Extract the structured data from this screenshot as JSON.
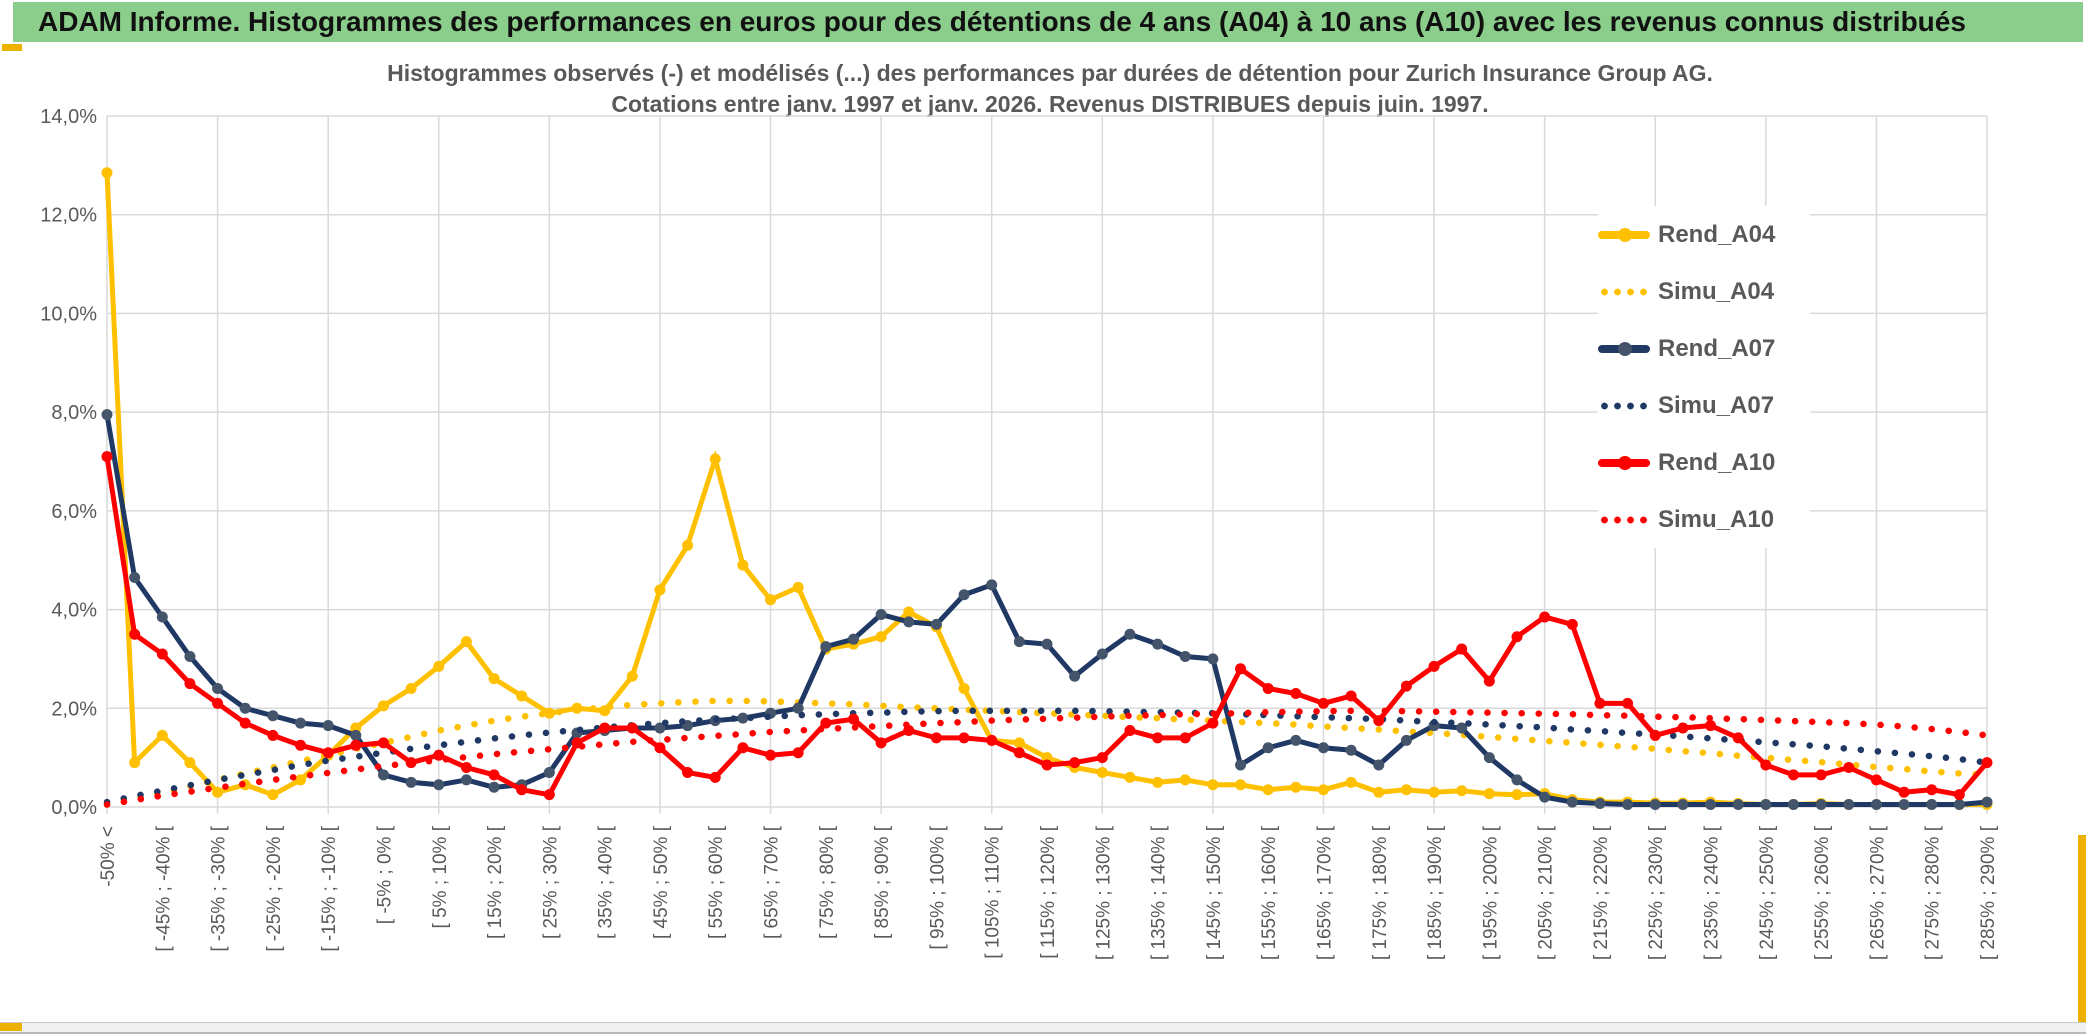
{
  "header": {
    "title": "ADAM Informe. Histogrammes des performances en euros pour des détentions de 4 ans (A04) à 10 ans (A10) avec les revenus connus distribués"
  },
  "chart_data": {
    "type": "line",
    "title_line1": "Histogrammes observés (-) et modélisés (...) des performances par durées de détention pour Zurich Insurance Group AG.",
    "title_line2": "Cotations entre janv. 1997 et janv. 2026. Revenus DISTRIBUES depuis juin. 1997.",
    "ylabel": "",
    "xlabel": "",
    "ylim": [
      0,
      14
    ],
    "grid": true,
    "legend_position": "right",
    "y_tick_labels": [
      "0,0%",
      "2,0%",
      "4,0%",
      "6,0%",
      "8,0%",
      "10,0%",
      "12,0%",
      "14,0%"
    ],
    "x_labels_every_other_point": true,
    "categories": [
      "-50% <",
      "[ -45% ; -40% [",
      "[ -35% ; -30% [",
      "[ -25% ; -20% [",
      "[ -15% ; -10% [",
      "[ -5% ; 0% [",
      "[ 5% ; 10% [",
      "[ 15% ; 20% [",
      "[ 25% ; 30% [",
      "[ 35% ; 40% [",
      "[ 45% ; 50% [",
      "[ 55% ; 60% [",
      "[ 65% ; 70% [",
      "[ 75% ; 80% [",
      "[ 85% ; 90% [",
      "[ 95% ; 100% [",
      "[ 105% ; 110% [",
      "[ 115% ; 120% [",
      "[ 125% ; 130% [",
      "[ 135% ; 140% [",
      "[ 145% ; 150% [",
      "[ 155% ; 160% [",
      "[ 165% ; 170% [",
      "[ 175% ; 180% [",
      "[ 185% ; 190% [",
      "[ 195% ; 200% [",
      "[ 205% ; 210% [",
      "[ 215% ; 220% [",
      "[ 225% ; 230% [",
      "[ 235% ; 240% [",
      "[ 245% ; 250% [",
      "[ 255% ; 260% [",
      "[ 265% ; 270% [",
      "[ 275% ; 280% [",
      "[ 285% ; 290% ["
    ],
    "series": [
      {
        "name": "Rend_A04",
        "style": "solid",
        "color": "#FFC000",
        "marker_color": "#FFC000",
        "values": [
          12.85,
          0.9,
          1.45,
          0.9,
          0.3,
          0.45,
          0.25,
          0.55,
          1.05,
          1.6,
          2.05,
          2.4,
          2.85,
          3.35,
          2.6,
          2.25,
          1.9,
          2.0,
          1.95,
          2.65,
          4.4,
          5.3,
          7.05,
          4.9,
          4.2,
          4.45,
          3.2,
          3.3,
          3.45,
          3.95,
          3.65,
          2.4,
          1.35,
          1.3,
          1.0,
          0.8,
          0.7,
          0.6,
          0.5,
          0.55,
          0.45,
          0.45,
          0.35,
          0.4,
          0.35,
          0.5,
          0.3,
          0.35,
          0.3,
          0.33,
          0.27,
          0.25,
          0.27,
          0.15,
          0.1,
          0.1,
          0.08,
          0.08,
          0.1,
          0.07,
          0.05,
          0.05,
          0.07,
          0.05,
          0.05,
          0.05,
          0.05,
          0.05,
          0.05
        ]
      },
      {
        "name": "Simu_A04",
        "style": "dotted",
        "color": "#FFC000",
        "marker_color": "#FFC000",
        "values": [
          0.05,
          0.15,
          0.28,
          0.42,
          0.55,
          0.68,
          0.8,
          0.93,
          1.05,
          1.18,
          1.3,
          1.42,
          1.55,
          1.65,
          1.75,
          1.83,
          1.9,
          1.97,
          2.02,
          2.07,
          2.1,
          2.13,
          2.15,
          2.15,
          2.14,
          2.12,
          2.1,
          2.08,
          2.05,
          2.02,
          2.0,
          1.97,
          1.95,
          1.92,
          1.9,
          1.87,
          1.85,
          1.82,
          1.8,
          1.77,
          1.75,
          1.72,
          1.7,
          1.67,
          1.63,
          1.6,
          1.57,
          1.53,
          1.5,
          1.46,
          1.42,
          1.38,
          1.34,
          1.3,
          1.26,
          1.22,
          1.18,
          1.13,
          1.09,
          1.04,
          1.0,
          0.95,
          0.91,
          0.86,
          0.81,
          0.77,
          0.72,
          0.68,
          0.65
        ]
      },
      {
        "name": "Rend_A07",
        "style": "solid",
        "color": "#1F3864",
        "marker_color": "#44546A",
        "values": [
          7.95,
          4.65,
          3.85,
          3.05,
          2.4,
          2.0,
          1.85,
          1.7,
          1.65,
          1.45,
          0.65,
          0.5,
          0.45,
          0.55,
          0.4,
          0.45,
          0.7,
          1.5,
          1.55,
          1.6,
          1.6,
          1.65,
          1.75,
          1.8,
          1.9,
          2.0,
          3.25,
          3.4,
          3.9,
          3.75,
          3.7,
          4.3,
          4.5,
          3.35,
          3.3,
          2.65,
          3.1,
          3.5,
          3.3,
          3.05,
          3.0,
          0.85,
          1.2,
          1.35,
          1.2,
          1.15,
          0.85,
          1.35,
          1.65,
          1.6,
          1.0,
          0.55,
          0.2,
          0.1,
          0.07,
          0.05,
          0.05,
          0.05,
          0.05,
          0.05,
          0.05,
          0.05,
          0.05,
          0.05,
          0.05,
          0.05,
          0.05,
          0.05,
          0.1
        ]
      },
      {
        "name": "Simu_A07",
        "style": "dotted",
        "color": "#1F3864",
        "marker_color": "#1F3864",
        "values": [
          0.1,
          0.22,
          0.33,
          0.44,
          0.55,
          0.65,
          0.75,
          0.85,
          0.94,
          1.02,
          1.1,
          1.18,
          1.25,
          1.32,
          1.39,
          1.45,
          1.51,
          1.56,
          1.61,
          1.66,
          1.7,
          1.74,
          1.77,
          1.8,
          1.83,
          1.86,
          1.88,
          1.9,
          1.91,
          1.93,
          1.94,
          1.95,
          1.95,
          1.95,
          1.95,
          1.95,
          1.94,
          1.93,
          1.92,
          1.91,
          1.9,
          1.88,
          1.86,
          1.84,
          1.82,
          1.8,
          1.78,
          1.75,
          1.72,
          1.7,
          1.67,
          1.64,
          1.61,
          1.57,
          1.54,
          1.5,
          1.47,
          1.43,
          1.39,
          1.35,
          1.31,
          1.27,
          1.23,
          1.18,
          1.13,
          1.08,
          1.03,
          0.97,
          0.9
        ]
      },
      {
        "name": "Rend_A10",
        "style": "solid",
        "color": "#FF0000",
        "marker_color": "#FF0000",
        "values": [
          7.1,
          3.5,
          3.1,
          2.5,
          2.1,
          1.7,
          1.45,
          1.25,
          1.1,
          1.25,
          1.3,
          0.9,
          1.05,
          0.8,
          0.65,
          0.35,
          0.25,
          1.3,
          1.6,
          1.6,
          1.2,
          0.7,
          0.6,
          1.2,
          1.05,
          1.1,
          1.7,
          1.78,
          1.3,
          1.55,
          1.4,
          1.4,
          1.35,
          1.1,
          0.85,
          0.9,
          1.0,
          1.55,
          1.4,
          1.4,
          1.7,
          2.8,
          2.4,
          2.3,
          2.1,
          2.25,
          1.75,
          2.45,
          2.85,
          3.2,
          2.55,
          3.45,
          3.85,
          3.7,
          2.1,
          2.1,
          1.45,
          1.6,
          1.65,
          1.4,
          0.85,
          0.65,
          0.65,
          0.8,
          0.55,
          0.3,
          0.35,
          0.25,
          0.9
        ]
      },
      {
        "name": "Simu_A10",
        "style": "dotted",
        "color": "#FF0000",
        "marker_color": "#FF0000",
        "values": [
          0.05,
          0.14,
          0.23,
          0.31,
          0.39,
          0.47,
          0.55,
          0.62,
          0.69,
          0.76,
          0.83,
          0.89,
          0.95,
          1.01,
          1.07,
          1.12,
          1.17,
          1.22,
          1.27,
          1.32,
          1.36,
          1.4,
          1.44,
          1.48,
          1.52,
          1.55,
          1.58,
          1.61,
          1.64,
          1.67,
          1.7,
          1.72,
          1.75,
          1.77,
          1.79,
          1.81,
          1.83,
          1.85,
          1.86,
          1.88,
          1.89,
          1.9,
          1.92,
          1.93,
          1.94,
          1.95,
          1.95,
          1.94,
          1.93,
          1.92,
          1.91,
          1.9,
          1.89,
          1.88,
          1.86,
          1.85,
          1.83,
          1.82,
          1.8,
          1.78,
          1.76,
          1.74,
          1.72,
          1.7,
          1.67,
          1.63,
          1.58,
          1.52,
          1.45
        ]
      }
    ],
    "colors": {
      "grid": "#D9D9D9",
      "axis_text": "#595959",
      "title_text": "#595959",
      "header_green": "#8bcd8b",
      "accent_gold": "#edb200"
    }
  }
}
